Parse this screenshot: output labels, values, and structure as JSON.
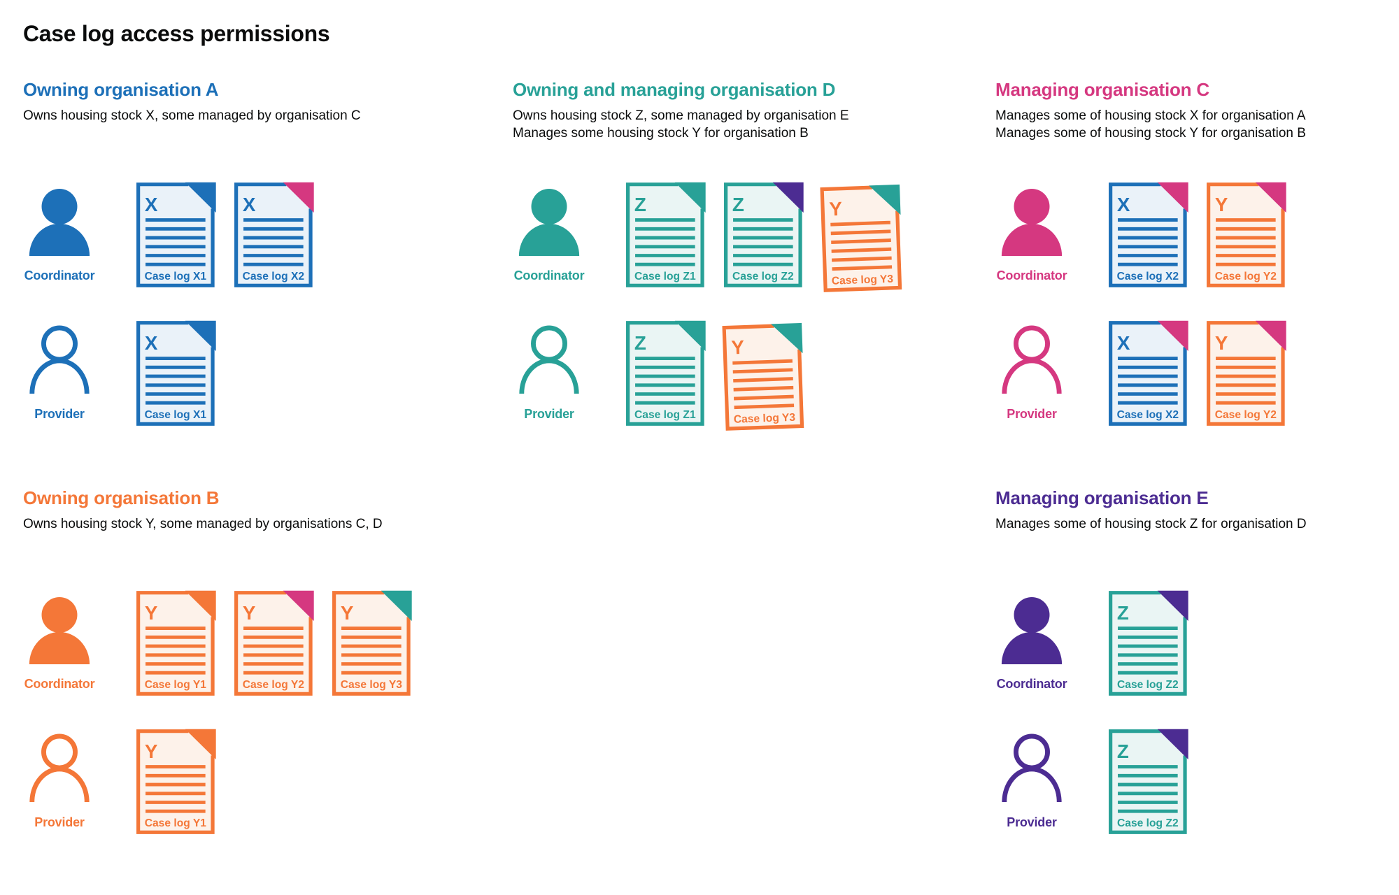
{
  "page": {
    "title": "Case log access permissions"
  },
  "colors": {
    "blue": "#1d70b8",
    "teal": "#28a197",
    "pink": "#d53880",
    "orange": "#f47738",
    "purple": "#4c2c92",
    "text": "#0b0c0c",
    "fills": {
      "blue": "#eaf2f9",
      "teal": "#eaf5f4",
      "orange": "#fdf2ea"
    }
  },
  "roles": {
    "coordinator": "Coordinator",
    "provider": "Provider"
  },
  "organisations": [
    {
      "id": "org-a",
      "name": "Owning organisation A",
      "color": "blue",
      "column": 1,
      "slot": "top",
      "description": [
        "Owns housing stock X, some managed by organisation C"
      ],
      "rows": [
        {
          "role": "Coordinator",
          "icon": "person-filled-icon",
          "docs": [
            {
              "letter": "X",
              "label": "Case log X1",
              "doc": "blue",
              "fold": "blue"
            },
            {
              "letter": "X",
              "label": "Case log X2",
              "doc": "blue",
              "fold": "pink"
            }
          ]
        },
        {
          "role": "Provider",
          "icon": "person-outline-icon",
          "docs": [
            {
              "letter": "X",
              "label": "Case log X1",
              "doc": "blue",
              "fold": "blue"
            }
          ]
        }
      ]
    },
    {
      "id": "org-d",
      "name": "Owning and managing organisation D",
      "color": "teal",
      "column": 2,
      "slot": "top",
      "description": [
        "Owns housing stock Z, some managed by organisation E",
        "Manages some housing stock Y for organisation B"
      ],
      "rows": [
        {
          "role": "Coordinator",
          "icon": "person-filled-icon",
          "docs": [
            {
              "letter": "Z",
              "label": "Case log Z1",
              "doc": "teal",
              "fold": "teal"
            },
            {
              "letter": "Z",
              "label": "Case log Z2",
              "doc": "teal",
              "fold": "purple"
            },
            {
              "letter": "Y",
              "label": "Case log Y3",
              "doc": "orange",
              "fold": "teal",
              "tilt": true
            }
          ]
        },
        {
          "role": "Provider",
          "icon": "person-outline-icon",
          "docs": [
            {
              "letter": "Z",
              "label": "Case log Z1",
              "doc": "teal",
              "fold": "teal"
            },
            {
              "letter": "Y",
              "label": "Case log Y3",
              "doc": "orange",
              "fold": "teal",
              "tilt": true
            }
          ]
        }
      ]
    },
    {
      "id": "org-c",
      "name": "Managing organisation C",
      "color": "pink",
      "column": 3,
      "slot": "top",
      "description": [
        "Manages some of housing stock X for organisation A",
        "Manages some of housing stock Y for organisation B"
      ],
      "rows": [
        {
          "role": "Coordinator",
          "icon": "person-filled-icon",
          "docs": [
            {
              "letter": "X",
              "label": "Case log X2",
              "doc": "blue",
              "fold": "pink"
            },
            {
              "letter": "Y",
              "label": "Case log Y2",
              "doc": "orange",
              "fold": "pink"
            }
          ]
        },
        {
          "role": "Provider",
          "icon": "person-outline-icon",
          "docs": [
            {
              "letter": "X",
              "label": "Case log X2",
              "doc": "blue",
              "fold": "pink"
            },
            {
              "letter": "Y",
              "label": "Case log Y2",
              "doc": "orange",
              "fold": "pink"
            }
          ]
        }
      ]
    },
    {
      "id": "org-b",
      "name": "Owning organisation B",
      "color": "orange",
      "column": 1,
      "slot": "bottom",
      "description": [
        "Owns housing stock Y, some managed by organisations C, D"
      ],
      "rows": [
        {
          "role": "Coordinator",
          "icon": "person-filled-icon",
          "docs": [
            {
              "letter": "Y",
              "label": "Case log Y1",
              "doc": "orange",
              "fold": "orange"
            },
            {
              "letter": "Y",
              "label": "Case log Y2",
              "doc": "orange",
              "fold": "pink"
            },
            {
              "letter": "Y",
              "label": "Case log Y3",
              "doc": "orange",
              "fold": "teal"
            }
          ]
        },
        {
          "role": "Provider",
          "icon": "person-outline-icon",
          "docs": [
            {
              "letter": "Y",
              "label": "Case log Y1",
              "doc": "orange",
              "fold": "orange"
            }
          ]
        }
      ]
    },
    {
      "id": "org-e",
      "name": "Managing organisation E",
      "color": "purple",
      "column": 3,
      "slot": "bottom",
      "description": [
        "Manages some of housing stock Z for organisation D"
      ],
      "rows": [
        {
          "role": "Coordinator",
          "icon": "person-filled-icon",
          "docs": [
            {
              "letter": "Z",
              "label": "Case log Z2",
              "doc": "teal",
              "fold": "purple"
            }
          ]
        },
        {
          "role": "Provider",
          "icon": "person-outline-icon",
          "docs": [
            {
              "letter": "Z",
              "label": "Case log Z2",
              "doc": "teal",
              "fold": "purple"
            }
          ]
        }
      ]
    }
  ]
}
